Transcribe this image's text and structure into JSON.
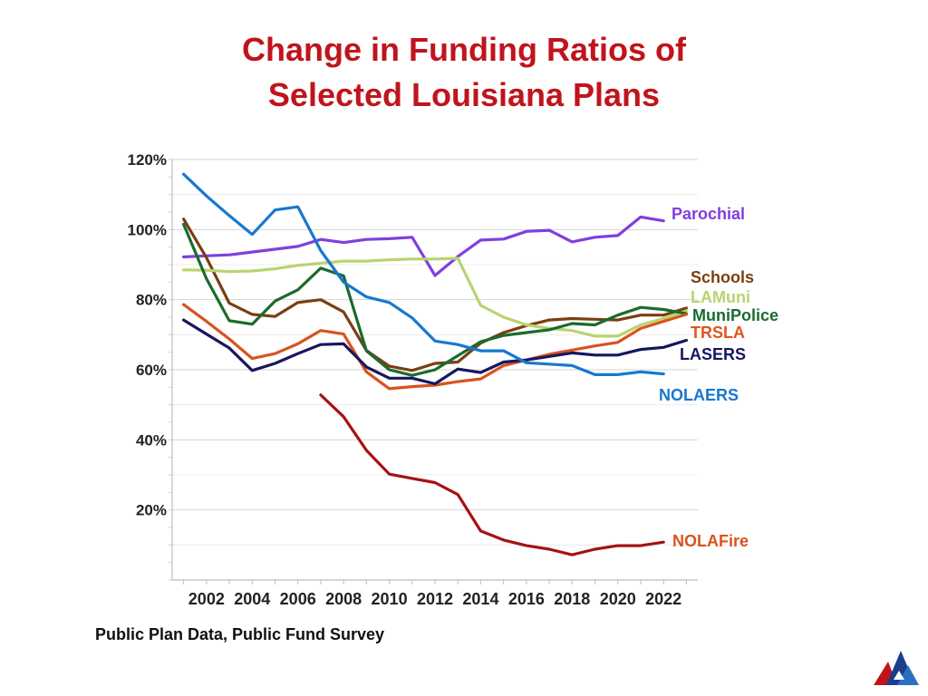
{
  "page": {
    "title_line1": "Change in Funding Ratios of",
    "title_line2": "Selected Louisiana Plans",
    "source": "Public Plan Data, Public Fund Survey"
  },
  "chart_data": {
    "type": "line",
    "title": "Change in Funding Ratios of Selected Louisiana Plans",
    "xlabel": "",
    "ylabel": "",
    "xlim": [
      2000.5,
      2023.5
    ],
    "ylim": [
      0,
      120
    ],
    "x_ticks": [
      2002,
      2004,
      2006,
      2008,
      2010,
      2012,
      2014,
      2016,
      2018,
      2020,
      2022
    ],
    "x_tick_labels": [
      "2002",
      "2004",
      "2006",
      "2008",
      "2010",
      "2012",
      "2014",
      "2016",
      "2018",
      "2020",
      "2022"
    ],
    "y_ticks": [
      20,
      40,
      60,
      80,
      100,
      120
    ],
    "y_tick_labels": [
      "20%",
      "40%",
      "60%",
      "80%",
      "100%",
      "120%"
    ],
    "legend_style": "direct labels at line ends (right)",
    "series": [
      {
        "name": "Parochial",
        "color": "#7f3fe0",
        "x": [
          2001,
          2002,
          2003,
          2004,
          2005,
          2006,
          2007,
          2008,
          2009,
          2010,
          2011,
          2012,
          2013,
          2014,
          2015,
          2016,
          2017,
          2018,
          2019,
          2020,
          2021,
          2022
        ],
        "y": [
          92.2,
          92.5,
          92.8,
          93.6,
          94.4,
          95.2,
          97.2,
          96.3,
          97.2,
          97.4,
          97.8,
          86.9,
          92.3,
          97,
          97.3,
          99.5,
          99.8,
          96.5,
          97.8,
          98.3,
          103.6,
          102.5
        ]
      },
      {
        "name": "Schools",
        "color": "#7a3f10",
        "x": [
          2001,
          2002,
          2003,
          2004,
          2005,
          2006,
          2007,
          2008,
          2009,
          2010,
          2011,
          2012,
          2013,
          2014,
          2015,
          2016,
          2017,
          2018,
          2019,
          2020,
          2021,
          2022,
          2023
        ],
        "y": [
          103,
          92,
          79,
          75.8,
          75.2,
          79.2,
          80,
          76.5,
          65.5,
          61,
          59.8,
          61.8,
          62.2,
          67.6,
          70.6,
          72.6,
          74.2,
          74.6,
          74.4,
          74.2,
          75.6,
          75.6,
          77.6
        ]
      },
      {
        "name": "LAMuni",
        "color": "#b8d46e",
        "x": [
          2001,
          2002,
          2003,
          2004,
          2005,
          2006,
          2007,
          2008,
          2009,
          2010,
          2011,
          2012,
          2013,
          2014,
          2015,
          2016,
          2017,
          2018,
          2019,
          2020,
          2021,
          2022,
          2023
        ],
        "y": [
          88.5,
          88.4,
          88,
          88.2,
          88.8,
          89.8,
          90.4,
          91,
          91,
          91.4,
          91.6,
          91.6,
          91.8,
          78.4,
          75,
          72.8,
          71.8,
          71.2,
          69.6,
          69.6,
          72.8,
          74.6,
          76.8
        ]
      },
      {
        "name": "MuniPolice",
        "color": "#1a6b2e",
        "x": [
          2001,
          2002,
          2003,
          2004,
          2005,
          2006,
          2007,
          2008,
          2009,
          2010,
          2011,
          2012,
          2013,
          2014,
          2015,
          2016,
          2017,
          2018,
          2019,
          2020,
          2021,
          2022,
          2023
        ],
        "y": [
          101.5,
          86,
          74,
          73,
          79.6,
          82.8,
          89,
          86.8,
          65.4,
          60,
          58.4,
          60,
          64,
          68,
          69.8,
          70.6,
          71.4,
          73.2,
          72.8,
          75.6,
          77.8,
          77.2,
          76
        ]
      },
      {
        "name": "TRSLA",
        "color": "#d8531e",
        "x": [
          2001,
          2002,
          2003,
          2004,
          2005,
          2006,
          2007,
          2008,
          2009,
          2010,
          2011,
          2012,
          2013,
          2014,
          2015,
          2016,
          2017,
          2018,
          2019,
          2020,
          2021,
          2022,
          2023
        ],
        "y": [
          78.6,
          73.8,
          68.8,
          63.2,
          64.6,
          67.4,
          71.2,
          70.2,
          59.4,
          54.6,
          55.2,
          55.6,
          56.6,
          57.4,
          61.2,
          62.8,
          64.4,
          65.6,
          66.8,
          67.8,
          71.8,
          73.8,
          75.8
        ]
      },
      {
        "name": "LASERS",
        "color": "#161660",
        "x": [
          2001,
          2002,
          2003,
          2004,
          2005,
          2006,
          2007,
          2008,
          2009,
          2010,
          2011,
          2012,
          2013,
          2014,
          2015,
          2016,
          2017,
          2018,
          2019,
          2020,
          2021,
          2022,
          2023
        ],
        "y": [
          74.2,
          70.2,
          66.2,
          59.8,
          61.8,
          64.6,
          67.2,
          67.4,
          60.8,
          57.6,
          57.6,
          56,
          60.2,
          59.2,
          62.2,
          62.8,
          63.8,
          64.8,
          64.2,
          64.2,
          65.8,
          66.4,
          68.4
        ]
      },
      {
        "name": "NOLAERS",
        "color": "#1878d0",
        "x": [
          2001,
          2002,
          2003,
          2004,
          2005,
          2006,
          2007,
          2008,
          2009,
          2010,
          2011,
          2012,
          2013,
          2014,
          2015,
          2016,
          2017,
          2018,
          2019,
          2020,
          2021,
          2022
        ],
        "y": [
          115.8,
          109.6,
          104,
          98.6,
          105.6,
          106.5,
          94,
          85,
          80.8,
          79.2,
          74.8,
          68.2,
          67.2,
          65.4,
          65.4,
          62,
          61.6,
          61.2,
          58.6,
          58.6,
          59.4,
          58.8
        ]
      },
      {
        "name": "NOLAFire",
        "color": "#a61212",
        "x": [
          2007,
          2008,
          2009,
          2010,
          2011,
          2012,
          2013,
          2014,
          2015,
          2016,
          2017,
          2018,
          2019,
          2020,
          2021,
          2022
        ],
        "y": [
          52.8,
          46.6,
          37,
          30.2,
          29,
          27.8,
          24.4,
          14,
          11.4,
          9.8,
          8.8,
          7.2,
          8.8,
          9.8,
          9.8,
          10.8
        ]
      }
    ],
    "labels": [
      {
        "text": "Parochial",
        "series": "Parochial"
      },
      {
        "text": "Schools",
        "series": "Schools"
      },
      {
        "text": "LAMuni",
        "series": "LAMuni"
      },
      {
        "text": "MuniPolice",
        "series": "MuniPolice"
      },
      {
        "text": "TRSLA",
        "series": "TRSLA"
      },
      {
        "text": "LASERS",
        "series": "LASERS"
      },
      {
        "text": "NOLAERS",
        "series": "NOLAERS"
      },
      {
        "text": "NOLAFire",
        "series": "NOLAFire"
      }
    ]
  },
  "logo": {
    "name": "organization-logo",
    "colors": [
      "#c0141c",
      "#1a3f8a",
      "#2a6fc0"
    ]
  }
}
